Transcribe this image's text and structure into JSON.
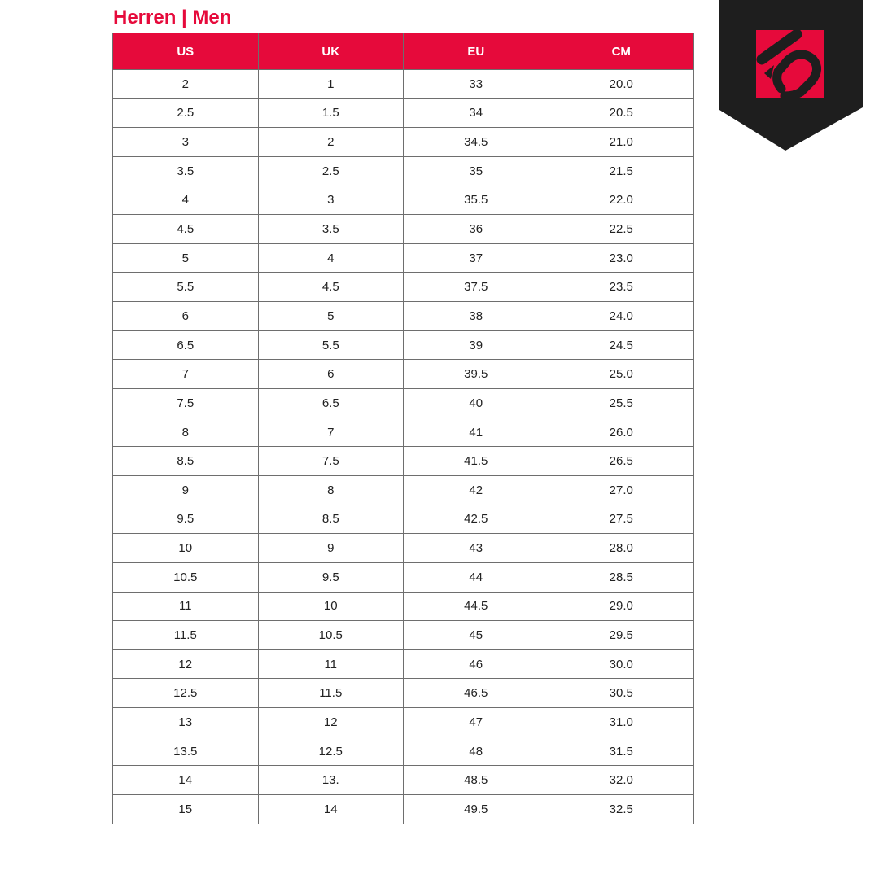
{
  "title": "Herren | Men",
  "brand_colors": {
    "accent": "#e60a3b",
    "badge": "#1e1e1e"
  },
  "logo": {
    "icon": "five-ten-logo"
  },
  "table": {
    "headers": [
      "US",
      "UK",
      "EU",
      "CM"
    ],
    "rows": [
      [
        "2",
        "1",
        "33",
        "20.0"
      ],
      [
        "2.5",
        "1.5",
        "34",
        "20.5"
      ],
      [
        "3",
        "2",
        "34.5",
        "21.0"
      ],
      [
        "3.5",
        "2.5",
        "35",
        "21.5"
      ],
      [
        "4",
        "3",
        "35.5",
        "22.0"
      ],
      [
        "4.5",
        "3.5",
        "36",
        "22.5"
      ],
      [
        "5",
        "4",
        "37",
        "23.0"
      ],
      [
        "5.5",
        "4.5",
        "37.5",
        "23.5"
      ],
      [
        "6",
        "5",
        "38",
        "24.0"
      ],
      [
        "6.5",
        "5.5",
        "39",
        "24.5"
      ],
      [
        "7",
        "6",
        "39.5",
        "25.0"
      ],
      [
        "7.5",
        "6.5",
        "40",
        "25.5"
      ],
      [
        "8",
        "7",
        "41",
        "26.0"
      ],
      [
        "8.5",
        "7.5",
        "41.5",
        "26.5"
      ],
      [
        "9",
        "8",
        "42",
        "27.0"
      ],
      [
        "9.5",
        "8.5",
        "42.5",
        "27.5"
      ],
      [
        "10",
        "9",
        "43",
        "28.0"
      ],
      [
        "10.5",
        "9.5",
        "44",
        "28.5"
      ],
      [
        "11",
        "10",
        "44.5",
        "29.0"
      ],
      [
        "11.5",
        "10.5",
        "45",
        "29.5"
      ],
      [
        "12",
        "11",
        "46",
        "30.0"
      ],
      [
        "12.5",
        "11.5",
        "46.5",
        "30.5"
      ],
      [
        "13",
        "12",
        "47",
        "31.0"
      ],
      [
        "13.5",
        "12.5",
        "48",
        "31.5"
      ],
      [
        "14",
        "13.",
        "48.5",
        "32.0"
      ],
      [
        "15",
        "14",
        "49.5",
        "32.5"
      ]
    ]
  }
}
